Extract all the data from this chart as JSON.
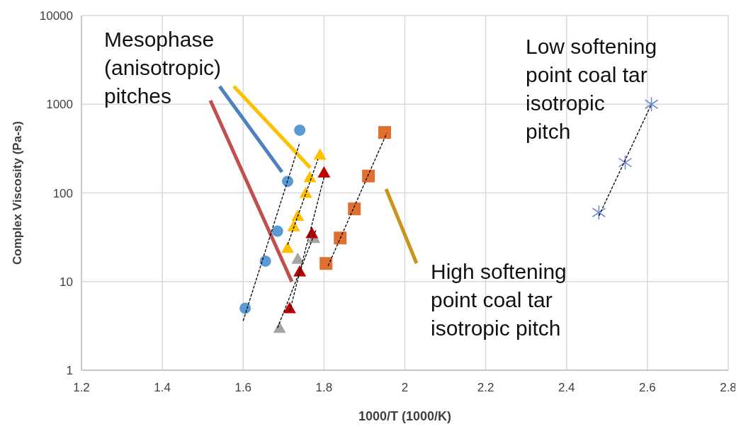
{
  "chart_data": {
    "type": "scatter",
    "xlabel": "1000/T (1000/K)",
    "ylabel": "Complex Viscosity (Pa-s)",
    "xlim": [
      1.2,
      2.8
    ],
    "xticks": [
      1.2,
      1.4,
      1.6,
      1.8,
      2,
      2.2,
      2.4,
      2.6,
      2.8
    ],
    "ylim": [
      1,
      10000
    ],
    "yticks": [
      1,
      10,
      100,
      1000,
      10000
    ],
    "log": "y",
    "grid": true,
    "series": [
      {
        "marker": "circle",
        "color": "#5b9bd5",
        "x": [
          1.605,
          1.655,
          1.685,
          1.71,
          1.74
        ],
        "values": [
          5,
          17,
          37,
          135,
          510
        ]
      },
      {
        "marker": "triangle",
        "color": "#ffc000",
        "x": [
          1.71,
          1.725,
          1.735,
          1.755,
          1.765,
          1.79
        ],
        "values": [
          24,
          42,
          55,
          100,
          150,
          270
        ]
      },
      {
        "marker": "triangle",
        "color": "#a5a5a5",
        "x": [
          1.69,
          1.735,
          1.775
        ],
        "values": [
          3,
          18,
          31
        ]
      },
      {
        "marker": "triangle",
        "color": "#c00000",
        "x": [
          1.715,
          1.74,
          1.77,
          1.8
        ],
        "values": [
          5,
          13,
          35,
          170
        ]
      },
      {
        "marker": "square",
        "color": "#e07030",
        "x": [
          1.805,
          1.84,
          1.875,
          1.91,
          1.95
        ],
        "values": [
          16,
          31,
          66,
          155,
          480
        ]
      },
      {
        "marker": "cross",
        "color": "#6f8fd0",
        "x": [
          2.48,
          2.545,
          2.61
        ],
        "values": [
          60,
          220,
          1000
        ]
      },
      {
        "type": "line",
        "line_style": "dashed",
        "color": "#000000",
        "x": [
          1.6,
          1.74
        ],
        "values": [
          3.6,
          370
        ]
      },
      {
        "type": "line",
        "line_style": "dashed",
        "color": "#000000",
        "x": [
          1.71,
          1.785
        ],
        "values": [
          26,
          240
        ]
      },
      {
        "type": "line",
        "line_style": "dashed",
        "color": "#000000",
        "x": [
          1.685,
          1.78
        ],
        "values": [
          3,
          38
        ]
      },
      {
        "type": "line",
        "line_style": "dashed",
        "color": "#000000",
        "x": [
          1.715,
          1.8
        ],
        "values": [
          4.6,
          150
        ]
      },
      {
        "type": "line",
        "line_style": "dashed",
        "color": "#000000",
        "x": [
          1.81,
          1.955
        ],
        "values": [
          15,
          470
        ]
      },
      {
        "type": "line",
        "line_style": "dashed",
        "color": "#000000",
        "x": [
          2.48,
          2.61
        ],
        "values": [
          55,
          1000
        ]
      }
    ],
    "annotations": [
      "Mesophase (anisotropic) pitches",
      "Low softening point coal tar isotropic pitch",
      "High softening point coal tar isotropic pitch"
    ]
  }
}
